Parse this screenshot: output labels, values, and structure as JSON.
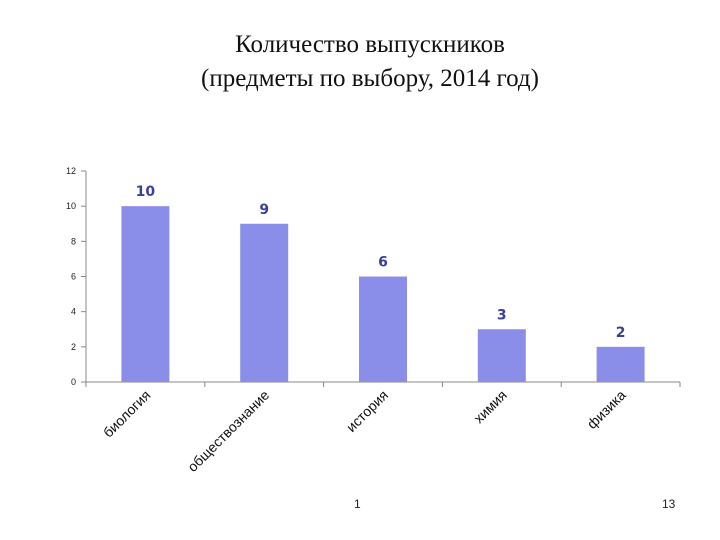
{
  "title": {
    "line1": "Количество выпускников",
    "line2": "(предметы по выбору, 2014 год)"
  },
  "chart_data": {
    "type": "bar",
    "categories": [
      "биология",
      "обществознание",
      "история",
      "химия",
      "физика"
    ],
    "values": [
      10,
      9,
      6,
      3,
      2
    ],
    "ylim": [
      0,
      12
    ],
    "yticks": [
      0,
      2,
      4,
      6,
      8,
      10,
      12
    ],
    "grid": false,
    "legend": "none",
    "bar_color": "#8b8ee8",
    "label_color": "#3a3f9a"
  },
  "footer": {
    "slide_number": "1",
    "page_number": "13"
  }
}
